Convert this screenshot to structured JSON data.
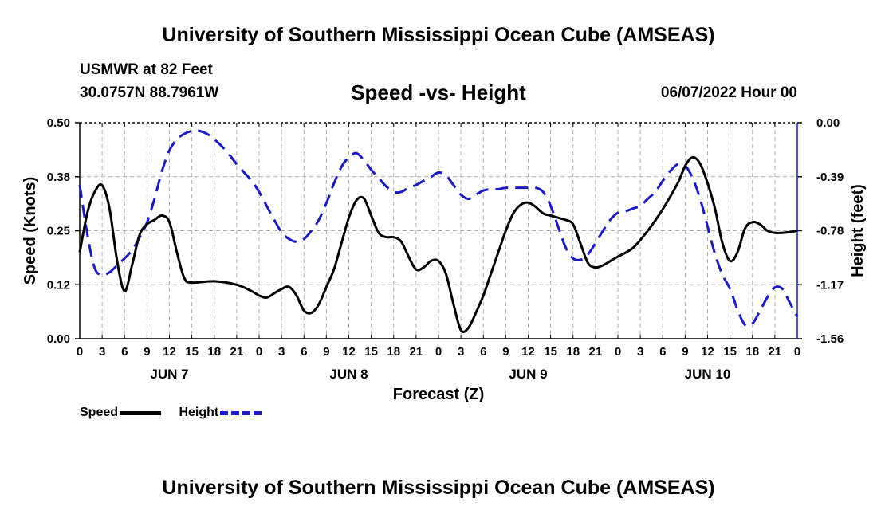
{
  "header": {
    "title": "University of Southern Mississippi Ocean Cube (AMSEAS)",
    "station": "USMWR at 82 Feet",
    "coords": "30.0757N  88.7961W",
    "chart_title": "Speed -vs- Height",
    "datetime": "06/07/2022 Hour 00"
  },
  "footer": {
    "title": "University of Southern Mississippi Ocean Cube (AMSEAS)"
  },
  "legend": {
    "speed_label": "Speed",
    "height_label": "Height"
  },
  "colors": {
    "speed": "#000000",
    "height": "#1a1acc",
    "grid": "#b0b0b0"
  },
  "chart_data": {
    "type": "line",
    "title": "Speed -vs- Height",
    "xlabel": "Forecast (Z)",
    "ylabel": "Speed (Knots)",
    "y2label": "Height (feet)",
    "xlim": [
      0,
      96
    ],
    "ylim": [
      0,
      0.5
    ],
    "y2lim": [
      -1.56,
      0
    ],
    "x_tick_step": 3,
    "x_tick_labels": [
      "0",
      "3",
      "6",
      "9",
      "12",
      "15",
      "18",
      "21",
      "0",
      "3",
      "6",
      "9",
      "12",
      "15",
      "18",
      "21",
      "0",
      "3",
      "6",
      "9",
      "12",
      "15",
      "18",
      "21",
      "0",
      "3",
      "6",
      "9",
      "12",
      "15",
      "18",
      "21",
      "0"
    ],
    "day_labels": [
      {
        "label": "JUN 7",
        "x": 12
      },
      {
        "label": "JUN 8",
        "x": 36
      },
      {
        "label": "JUN 9",
        "x": 60
      },
      {
        "label": "JUN 10",
        "x": 84
      }
    ],
    "y_ticks": [
      0.0,
      0.125,
      0.25,
      0.375,
      0.5
    ],
    "y_tick_labels": [
      "0.00",
      "0.12",
      "0.25",
      "0.38",
      "0.50"
    ],
    "y2_ticks": [
      0.0,
      -0.39,
      -0.78,
      -1.17,
      -1.56
    ],
    "y2_tick_labels": [
      "0.00",
      "-0.39",
      "-0.78",
      "-1.17",
      "-1.56"
    ],
    "grid": true,
    "series": [
      {
        "name": "Speed",
        "axis": "left",
        "style": "solid",
        "points": [
          [
            0,
            0.2
          ],
          [
            1,
            0.29
          ],
          [
            2,
            0.34
          ],
          [
            3,
            0.355
          ],
          [
            4,
            0.3
          ],
          [
            5,
            0.18
          ],
          [
            6,
            0.11
          ],
          [
            7,
            0.17
          ],
          [
            8,
            0.24
          ],
          [
            9,
            0.265
          ],
          [
            10,
            0.275
          ],
          [
            11,
            0.285
          ],
          [
            12,
            0.27
          ],
          [
            13,
            0.2
          ],
          [
            14,
            0.14
          ],
          [
            15,
            0.13
          ],
          [
            18,
            0.133
          ],
          [
            21,
            0.125
          ],
          [
            23,
            0.11
          ],
          [
            24,
            0.1
          ],
          [
            25,
            0.095
          ],
          [
            26,
            0.105
          ],
          [
            27,
            0.115
          ],
          [
            28,
            0.12
          ],
          [
            29,
            0.1
          ],
          [
            30,
            0.065
          ],
          [
            31,
            0.06
          ],
          [
            32,
            0.08
          ],
          [
            33,
            0.12
          ],
          [
            34,
            0.16
          ],
          [
            35,
            0.22
          ],
          [
            36,
            0.28
          ],
          [
            37,
            0.32
          ],
          [
            38,
            0.325
          ],
          [
            39,
            0.285
          ],
          [
            40,
            0.245
          ],
          [
            41,
            0.235
          ],
          [
            42,
            0.235
          ],
          [
            43,
            0.225
          ],
          [
            44,
            0.19
          ],
          [
            45,
            0.16
          ],
          [
            46,
            0.165
          ],
          [
            47,
            0.18
          ],
          [
            48,
            0.18
          ],
          [
            49,
            0.15
          ],
          [
            50,
            0.08
          ],
          [
            51,
            0.02
          ],
          [
            52,
            0.025
          ],
          [
            53,
            0.06
          ],
          [
            54,
            0.1
          ],
          [
            55,
            0.15
          ],
          [
            56,
            0.2
          ],
          [
            57,
            0.25
          ],
          [
            58,
            0.29
          ],
          [
            59,
            0.31
          ],
          [
            60,
            0.315
          ],
          [
            61,
            0.305
          ],
          [
            62,
            0.29
          ],
          [
            63,
            0.285
          ],
          [
            64,
            0.28
          ],
          [
            65,
            0.275
          ],
          [
            66,
            0.265
          ],
          [
            67,
            0.22
          ],
          [
            68,
            0.175
          ],
          [
            69,
            0.165
          ],
          [
            70,
            0.17
          ],
          [
            71,
            0.18
          ],
          [
            72,
            0.19
          ],
          [
            74,
            0.21
          ],
          [
            76,
            0.25
          ],
          [
            78,
            0.3
          ],
          [
            80,
            0.36
          ],
          [
            81,
            0.4
          ],
          [
            82,
            0.42
          ],
          [
            83,
            0.405
          ],
          [
            84,
            0.36
          ],
          [
            85,
            0.3
          ],
          [
            86,
            0.22
          ],
          [
            87,
            0.18
          ],
          [
            88,
            0.2
          ],
          [
            89,
            0.255
          ],
          [
            90,
            0.27
          ],
          [
            91,
            0.265
          ],
          [
            92,
            0.25
          ],
          [
            93,
            0.245
          ],
          [
            94,
            0.245
          ],
          [
            95,
            0.247
          ],
          [
            96,
            0.25
          ]
        ]
      },
      {
        "name": "Height",
        "axis": "right",
        "style": "dashed",
        "points": [
          [
            0,
            -0.45
          ],
          [
            1,
            -0.8
          ],
          [
            2,
            -1.05
          ],
          [
            3,
            -1.1
          ],
          [
            4,
            -1.08
          ],
          [
            5,
            -1.03
          ],
          [
            6,
            -0.98
          ],
          [
            7,
            -0.92
          ],
          [
            8,
            -0.83
          ],
          [
            9,
            -0.72
          ],
          [
            10,
            -0.55
          ],
          [
            11,
            -0.35
          ],
          [
            12,
            -0.2
          ],
          [
            13,
            -0.12
          ],
          [
            14,
            -0.08
          ],
          [
            15,
            -0.06
          ],
          [
            16,
            -0.06
          ],
          [
            17,
            -0.08
          ],
          [
            18,
            -0.12
          ],
          [
            19,
            -0.17
          ],
          [
            20,
            -0.23
          ],
          [
            21,
            -0.3
          ],
          [
            22,
            -0.36
          ],
          [
            23,
            -0.42
          ],
          [
            24,
            -0.5
          ],
          [
            25,
            -0.6
          ],
          [
            26,
            -0.7
          ],
          [
            27,
            -0.79
          ],
          [
            28,
            -0.84
          ],
          [
            29,
            -0.86
          ],
          [
            30,
            -0.84
          ],
          [
            31,
            -0.78
          ],
          [
            32,
            -0.7
          ],
          [
            33,
            -0.58
          ],
          [
            34,
            -0.44
          ],
          [
            35,
            -0.32
          ],
          [
            36,
            -0.25
          ],
          [
            37,
            -0.22
          ],
          [
            38,
            -0.27
          ],
          [
            39,
            -0.34
          ],
          [
            40,
            -0.4
          ],
          [
            41,
            -0.46
          ],
          [
            42,
            -0.5
          ],
          [
            43,
            -0.5
          ],
          [
            44,
            -0.47
          ],
          [
            45,
            -0.45
          ],
          [
            46,
            -0.42
          ],
          [
            47,
            -0.39
          ],
          [
            48,
            -0.36
          ],
          [
            49,
            -0.38
          ],
          [
            50,
            -0.45
          ],
          [
            51,
            -0.52
          ],
          [
            52,
            -0.55
          ],
          [
            53,
            -0.52
          ],
          [
            54,
            -0.49
          ],
          [
            55,
            -0.48
          ],
          [
            56,
            -0.48
          ],
          [
            57,
            -0.47
          ],
          [
            58,
            -0.47
          ],
          [
            59,
            -0.47
          ],
          [
            60,
            -0.47
          ],
          [
            61,
            -0.47
          ],
          [
            62,
            -0.5
          ],
          [
            63,
            -0.6
          ],
          [
            64,
            -0.75
          ],
          [
            65,
            -0.9
          ],
          [
            66,
            -0.98
          ],
          [
            67,
            -0.99
          ],
          [
            68,
            -0.95
          ],
          [
            69,
            -0.87
          ],
          [
            70,
            -0.78
          ],
          [
            71,
            -0.7
          ],
          [
            72,
            -0.65
          ],
          [
            73,
            -0.64
          ],
          [
            74,
            -0.62
          ],
          [
            75,
            -0.6
          ],
          [
            76,
            -0.55
          ],
          [
            77,
            -0.5
          ],
          [
            78,
            -0.42
          ],
          [
            79,
            -0.35
          ],
          [
            80,
            -0.3
          ],
          [
            81,
            -0.31
          ],
          [
            82,
            -0.4
          ],
          [
            83,
            -0.55
          ],
          [
            84,
            -0.75
          ],
          [
            85,
            -0.95
          ],
          [
            86,
            -1.1
          ],
          [
            87,
            -1.2
          ],
          [
            88,
            -1.35
          ],
          [
            89,
            -1.46
          ],
          [
            90,
            -1.45
          ],
          [
            91,
            -1.36
          ],
          [
            92,
            -1.26
          ],
          [
            93,
            -1.19
          ],
          [
            94,
            -1.2
          ],
          [
            95,
            -1.3
          ],
          [
            96,
            -1.4
          ]
        ]
      }
    ]
  }
}
